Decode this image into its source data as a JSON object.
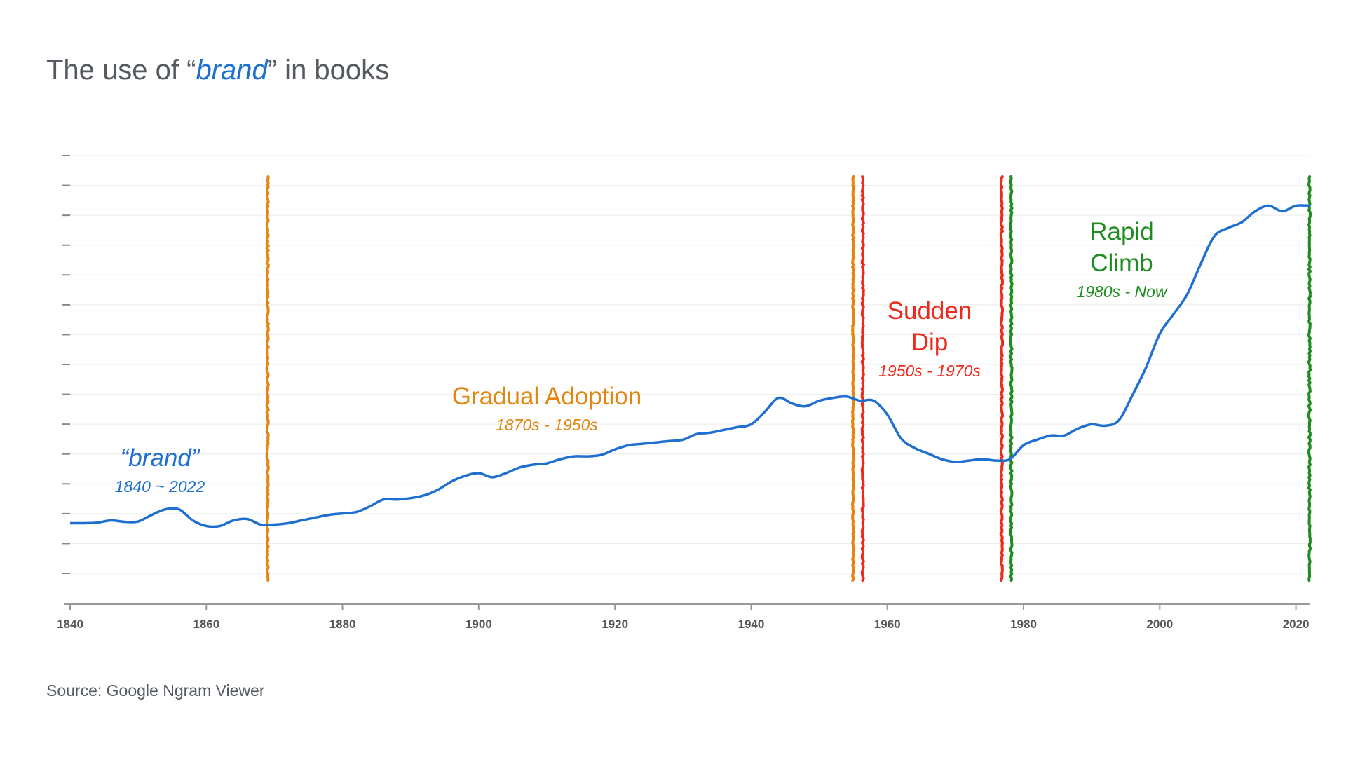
{
  "title": {
    "prefix": "The use of “",
    "keyword": "brand",
    "suffix": "” in books"
  },
  "source": "Source: Google Ngram Viewer",
  "colors": {
    "line": "#1f6fd1",
    "gradual": "#e3860f",
    "dip": "#ee2a1c",
    "climb": "#1e8c1e",
    "axis": "#999999",
    "grid": "#ececec",
    "text": "#555a61"
  },
  "chart_data": {
    "type": "line",
    "xlim": [
      1840,
      2022
    ],
    "xticks": [
      1840,
      1860,
      1880,
      1900,
      1920,
      1940,
      1960,
      1980,
      2000,
      2020
    ],
    "ylim": [
      0,
      15
    ],
    "yticks_count": 15,
    "grid": true,
    "series": [
      {
        "name": "",
        "x": [
          1840,
          1842,
          1844,
          1846,
          1848,
          1850,
          1852,
          1854,
          1856,
          1858,
          1860,
          1862,
          1864,
          1866,
          1868,
          1870,
          1872,
          1874,
          1876,
          1878,
          1880,
          1882,
          1884,
          1886,
          1888,
          1890,
          1892,
          1894,
          1896,
          1898,
          1900,
          1902,
          1904,
          1906,
          1908,
          1910,
          1912,
          1914,
          1916,
          1918,
          1920,
          1922,
          1924,
          1926,
          1928,
          1930,
          1932,
          1934,
          1936,
          1938,
          1940,
          1942,
          1944,
          1946,
          1948,
          1950,
          1952,
          1954,
          1956,
          1958,
          1960,
          1962,
          1964,
          1966,
          1968,
          1970,
          1972,
          1974,
          1976,
          1978,
          1980,
          1982,
          1984,
          1986,
          1988,
          1990,
          1992,
          1994,
          1996,
          1998,
          2000,
          2002,
          2004,
          2006,
          2008,
          2010,
          2012,
          2014,
          2016,
          2018,
          2020,
          2022
        ],
        "y": [
          1.8,
          1.8,
          1.82,
          1.9,
          1.85,
          1.86,
          2.1,
          2.3,
          2.3,
          1.9,
          1.7,
          1.7,
          1.9,
          1.95,
          1.75,
          1.75,
          1.8,
          1.9,
          2.0,
          2.1,
          2.15,
          2.2,
          2.4,
          2.65,
          2.65,
          2.7,
          2.8,
          3.0,
          3.3,
          3.5,
          3.6,
          3.45,
          3.6,
          3.8,
          3.9,
          3.95,
          4.1,
          4.2,
          4.2,
          4.25,
          4.45,
          4.6,
          4.65,
          4.7,
          4.75,
          4.8,
          5.0,
          5.05,
          5.15,
          5.25,
          5.35,
          5.8,
          6.3,
          6.1,
          6.0,
          6.2,
          6.3,
          6.35,
          6.2,
          6.2,
          5.7,
          4.85,
          4.5,
          4.3,
          4.1,
          4.0,
          4.05,
          4.1,
          4.05,
          4.1,
          4.6,
          4.8,
          4.95,
          4.95,
          5.2,
          5.35,
          5.3,
          5.5,
          6.4,
          7.4,
          8.6,
          9.3,
          10.0,
          11.1,
          12.1,
          12.4,
          12.6,
          13.0,
          13.2,
          13.0,
          13.2,
          13.2
        ]
      }
    ],
    "markers": [
      {
        "x": 1869,
        "color_key": "gradual"
      },
      {
        "x": 1955,
        "color_key": "gradual"
      },
      {
        "x": 1956.4,
        "color_key": "dip"
      },
      {
        "x": 1976.8,
        "color_key": "dip"
      },
      {
        "x": 1978.2,
        "color_key": "climb"
      },
      {
        "x": 2022,
        "color_key": "climb"
      }
    ],
    "annotations": [
      {
        "id": "brand",
        "color_key": "line",
        "lines": [
          "“brand”"
        ],
        "sub": "1840 ~ 2022"
      },
      {
        "id": "gradual",
        "color_key": "gradual",
        "lines": [
          "Gradual Adoption"
        ],
        "sub": "1870s - 1950s"
      },
      {
        "id": "dip",
        "color_key": "dip",
        "lines": [
          "Sudden",
          "Dip"
        ],
        "sub": "1950s - 1970s"
      },
      {
        "id": "climb",
        "color_key": "climb",
        "lines": [
          "Rapid",
          "Climb"
        ],
        "sub": "1980s - Now"
      }
    ]
  }
}
